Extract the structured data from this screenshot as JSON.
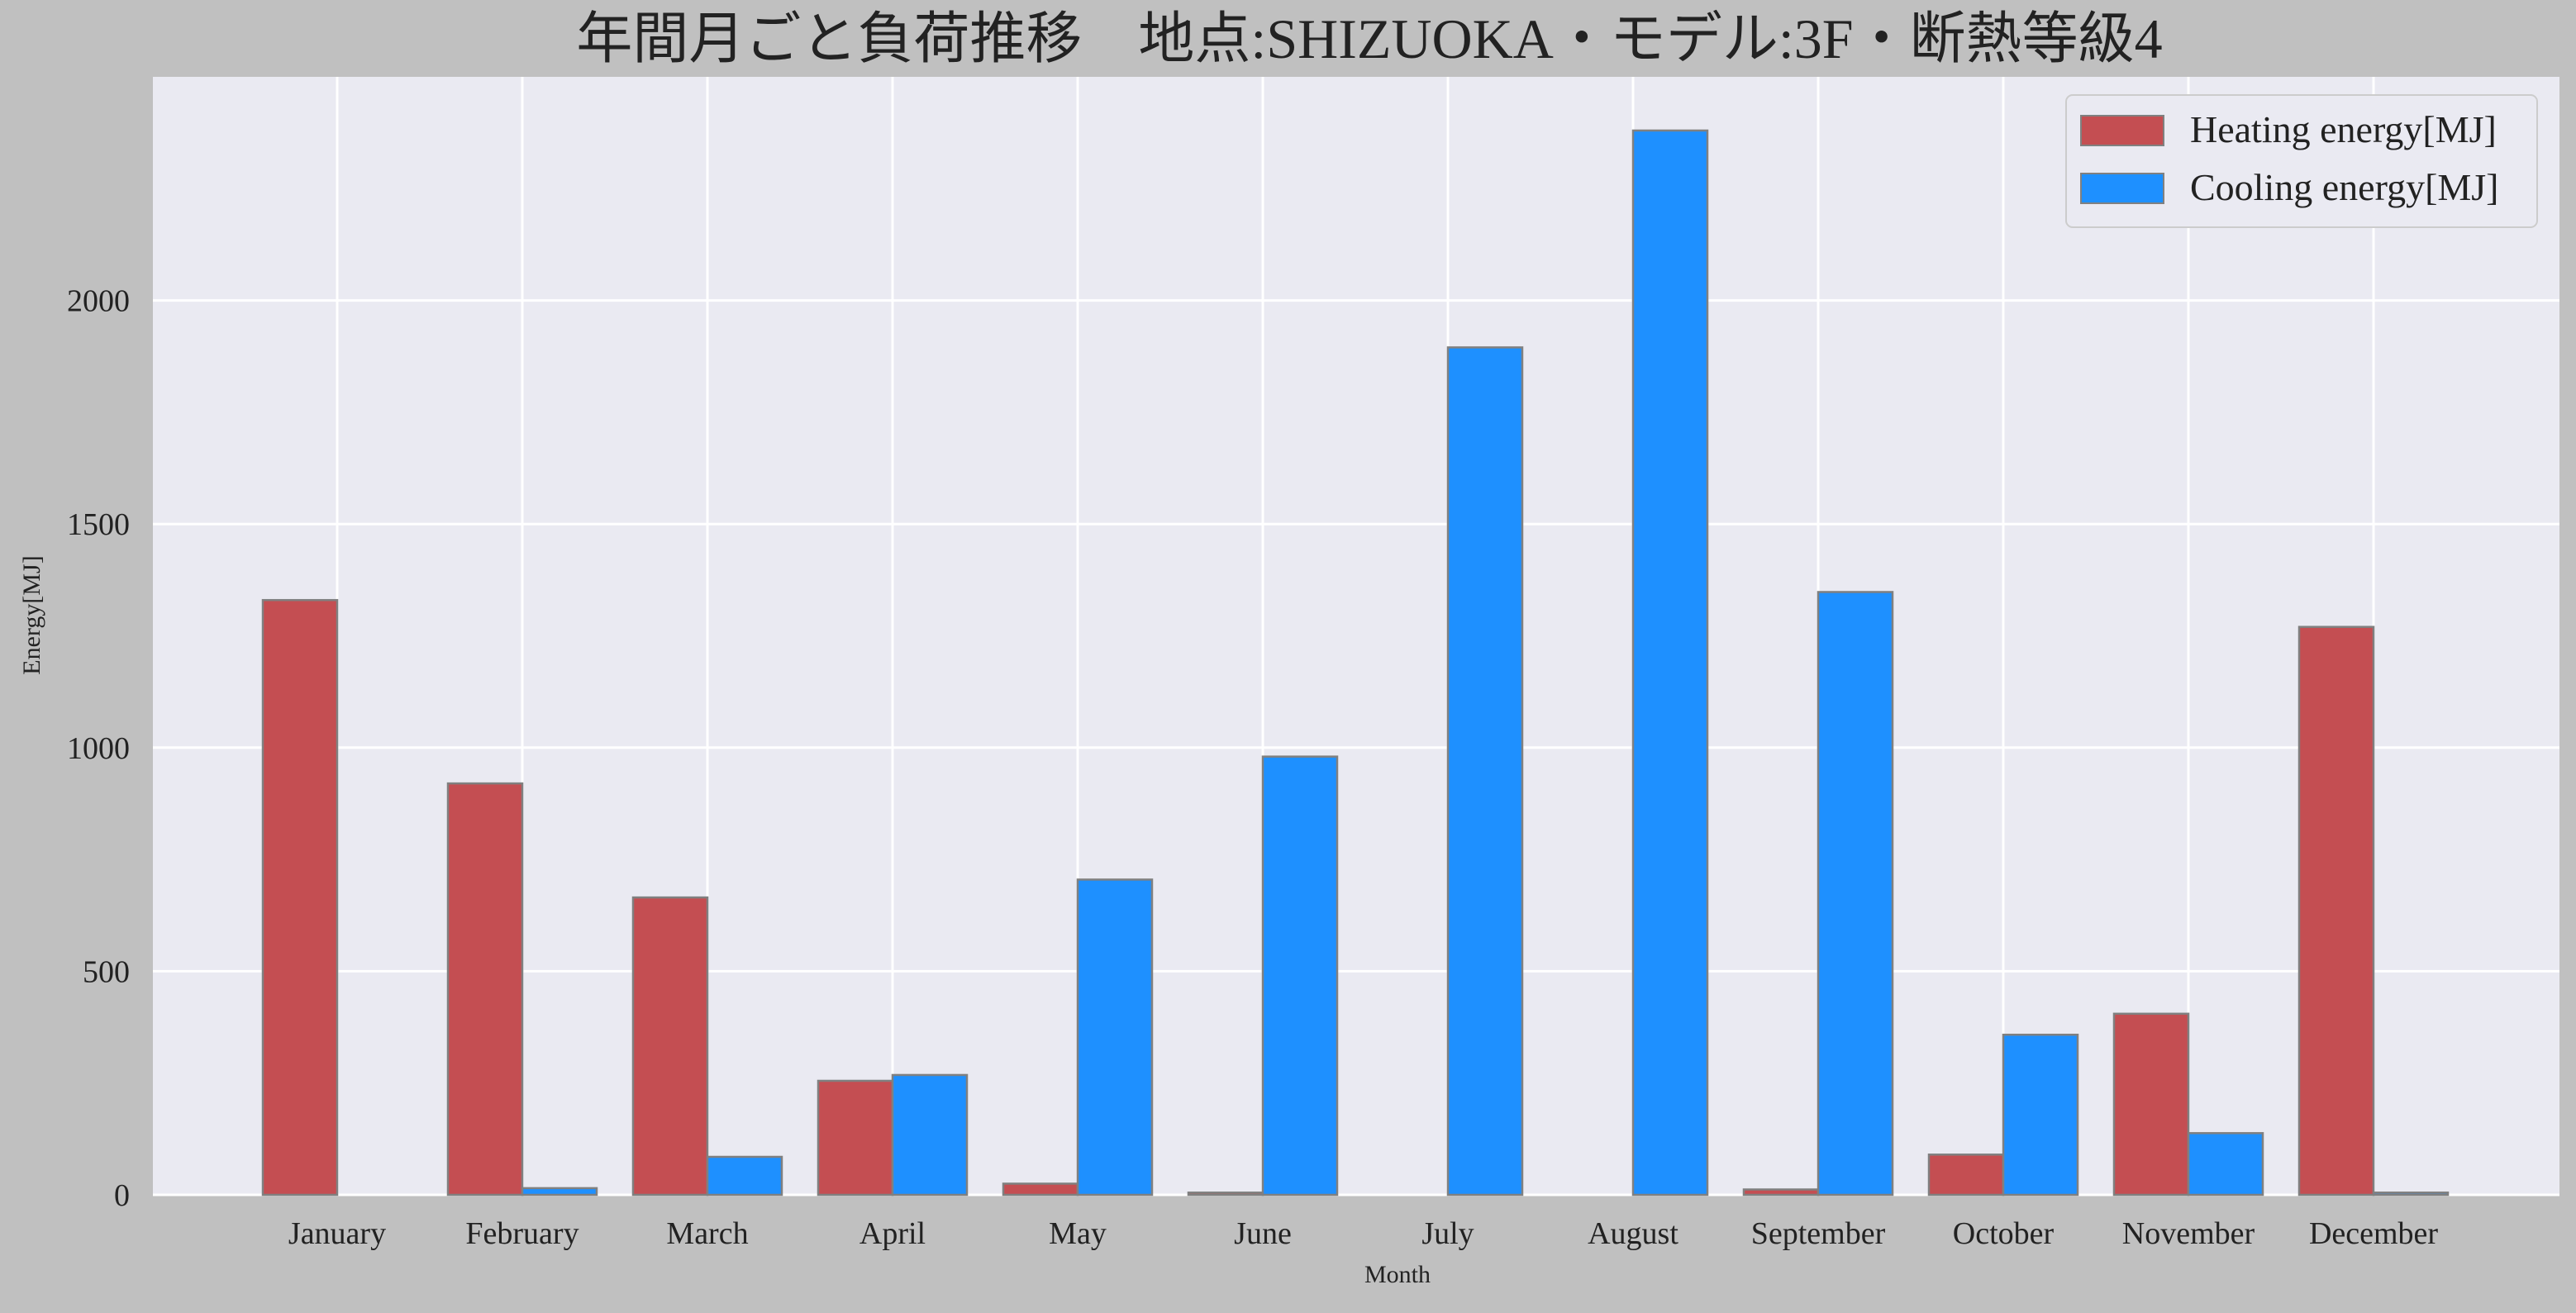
{
  "chart_data": {
    "type": "bar",
    "title": "年間月ごと負荷推移　地点:SHIZUOKA・モデル:3F・断熱等級4",
    "xlabel": "Month",
    "ylabel": "Energy[MJ]",
    "categories": [
      "January",
      "February",
      "March",
      "April",
      "May",
      "June",
      "July",
      "August",
      "September",
      "October",
      "November",
      "December"
    ],
    "series": [
      {
        "name": "Heating energy[MJ]",
        "color": "#c44e52",
        "values": [
          1330,
          920,
          665,
          255,
          25,
          5,
          0,
          0,
          12,
          90,
          405,
          1270
        ]
      },
      {
        "name": "Cooling energy[MJ]",
        "color": "#1e90ff",
        "values": [
          0,
          15,
          85,
          268,
          705,
          980,
          1895,
          2380,
          1348,
          358,
          138,
          5
        ]
      }
    ],
    "ylim": [
      0,
      2500
    ],
    "yticks": [
      0,
      500,
      1000,
      1500,
      2000
    ],
    "grid": true,
    "legend_position": "top-right",
    "colors": {
      "background": "#c0c0c0",
      "plot_background": "#eaeaf2",
      "grid": "#ffffff",
      "bar_edge": "#808080"
    }
  }
}
